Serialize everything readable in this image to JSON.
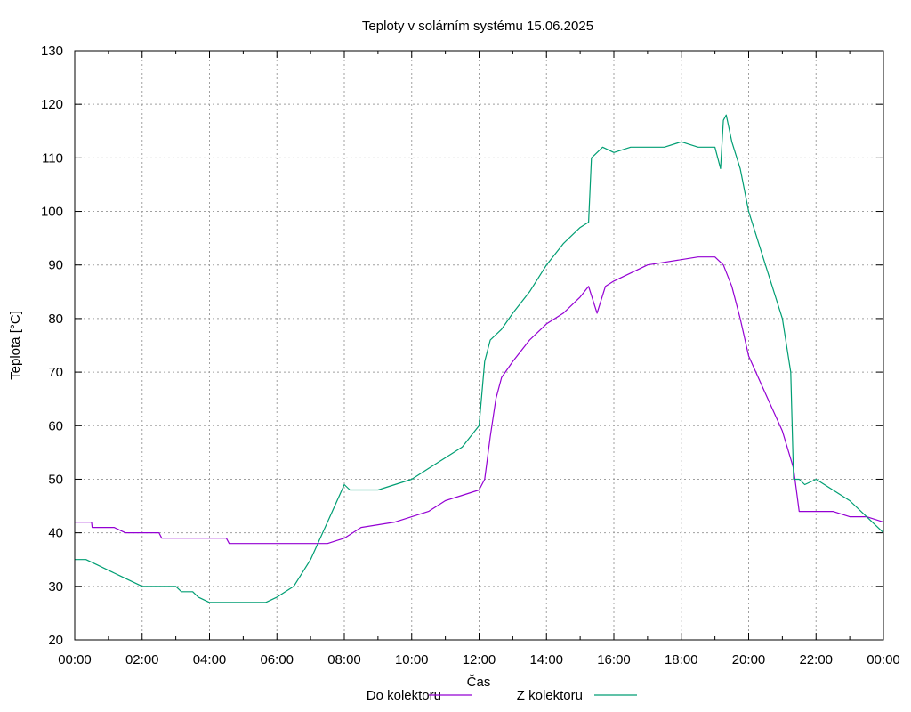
{
  "chart_data": {
    "type": "line",
    "title": "Teploty v solárním systému 15.06.2025",
    "xlabel": "Čas",
    "ylabel": "Teplota [°C]",
    "xlim": [
      "00:00",
      "24:00"
    ],
    "ylim": [
      20,
      130
    ],
    "grid": true,
    "legend_position": "bottom-center",
    "x_tick_labels": [
      "00:00",
      "02:00",
      "04:00",
      "06:00",
      "08:00",
      "10:00",
      "12:00",
      "14:00",
      "16:00",
      "18:00",
      "20:00",
      "22:00",
      "00:00"
    ],
    "y_ticks": [
      20,
      30,
      40,
      50,
      60,
      70,
      80,
      90,
      100,
      110,
      120,
      130
    ],
    "series": [
      {
        "name": "Do kolektoru",
        "color": "#9400d3",
        "x": [
          "00:00",
          "00:30",
          "00:31",
          "01:00",
          "01:10",
          "01:30",
          "02:00",
          "02:30",
          "02:35",
          "03:00",
          "04:00",
          "04:30",
          "04:35",
          "05:00",
          "06:00",
          "07:00",
          "07:30",
          "08:00",
          "08:30",
          "09:00",
          "09:30",
          "10:00",
          "10:30",
          "11:00",
          "11:30",
          "12:00",
          "12:10",
          "12:20",
          "12:30",
          "12:40",
          "13:00",
          "13:30",
          "14:00",
          "14:30",
          "15:00",
          "15:15",
          "15:30",
          "15:45",
          "16:00",
          "16:30",
          "17:00",
          "17:30",
          "18:00",
          "18:30",
          "19:00",
          "19:15",
          "19:30",
          "19:45",
          "20:00",
          "20:30",
          "21:00",
          "21:20",
          "21:30",
          "22:00",
          "22:30",
          "23:00",
          "23:30",
          "24:00"
        ],
        "y": [
          42,
          42,
          41,
          41,
          41,
          40,
          40,
          40,
          39,
          39,
          39,
          39,
          38,
          38,
          38,
          38,
          38,
          39,
          41,
          41.5,
          42,
          43,
          44,
          46,
          47,
          48,
          50,
          58,
          65,
          69,
          72,
          76,
          79,
          81,
          84,
          86,
          81,
          86,
          87,
          88.5,
          90,
          90.5,
          91,
          91.5,
          91.5,
          90,
          86,
          80,
          73,
          66,
          59,
          52,
          44,
          44,
          44,
          43,
          43,
          42
        ]
      },
      {
        "name": "Z kolektoru",
        "color": "#009e73",
        "x": [
          "00:00",
          "00:20",
          "00:40",
          "01:00",
          "01:20",
          "01:40",
          "02:00",
          "03:00",
          "03:10",
          "03:30",
          "03:40",
          "04:00",
          "05:00",
          "05:20",
          "05:40",
          "06:00",
          "06:30",
          "07:00",
          "07:30",
          "08:00",
          "08:10",
          "08:30",
          "09:00",
          "09:30",
          "10:00",
          "10:30",
          "11:00",
          "11:30",
          "12:00",
          "12:10",
          "12:20",
          "12:40",
          "13:00",
          "13:30",
          "14:00",
          "14:30",
          "15:00",
          "15:15",
          "15:20",
          "15:40",
          "16:00",
          "16:30",
          "17:00",
          "17:30",
          "18:00",
          "18:30",
          "19:00",
          "19:10",
          "19:15",
          "19:20",
          "19:30",
          "19:45",
          "20:00",
          "20:30",
          "21:00",
          "21:15",
          "21:20",
          "21:30",
          "21:40",
          "22:00",
          "22:30",
          "23:00",
          "23:30",
          "24:00"
        ],
        "y": [
          35,
          35,
          34,
          33,
          32,
          31,
          30,
          30,
          29,
          29,
          28,
          27,
          27,
          27,
          27,
          28,
          30,
          35,
          42,
          49,
          48,
          48,
          48,
          49,
          50,
          52,
          54,
          56,
          60,
          72,
          76,
          78,
          81,
          85,
          90,
          94,
          97,
          98,
          110,
          112,
          111,
          112,
          112,
          112,
          113,
          112,
          112,
          108,
          117,
          118,
          113,
          108,
          100,
          90,
          80,
          70,
          50,
          50,
          49,
          50,
          48,
          46,
          43,
          40
        ]
      }
    ]
  }
}
